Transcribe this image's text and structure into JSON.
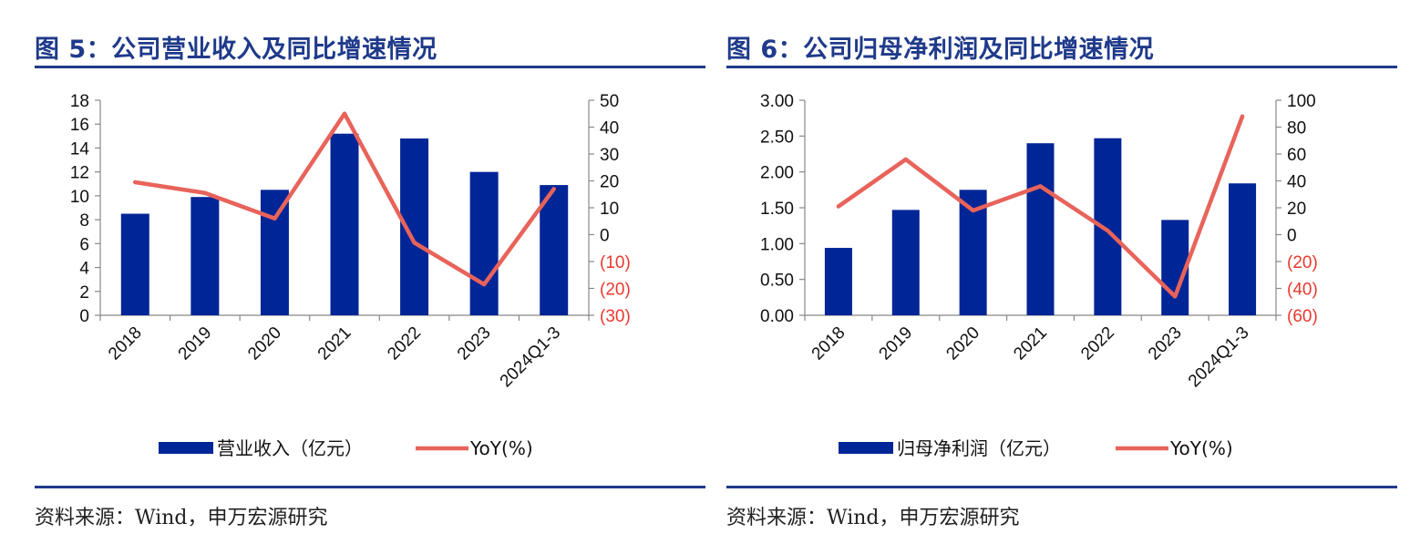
{
  "colors": {
    "bar": "#002596",
    "line": "#e8635a",
    "negative_tick": "#e8392f",
    "title": "#1f3a8a"
  },
  "charts": [
    {
      "title": "图 5：公司营业收入及同比增速情况",
      "source": "资料来源：Wind，申万宏源研究",
      "legend_bar": "营业收入（亿元）",
      "legend_line": "YoY(%)",
      "left_ticks": [
        "0",
        "2",
        "4",
        "6",
        "8",
        "10",
        "12",
        "14",
        "16",
        "18"
      ],
      "right_ticks": [
        "(30)",
        "(20)",
        "(10)",
        "0",
        "10",
        "20",
        "30",
        "40",
        "50"
      ]
    },
    {
      "title": "图 6：公司归母净利润及同比增速情况",
      "source": "资料来源：Wind，申万宏源研究",
      "legend_bar": "归母净利润（亿元）",
      "legend_line": "YoY(%)",
      "left_ticks": [
        "0.00",
        "0.50",
        "1.00",
        "1.50",
        "2.00",
        "2.50",
        "3.00"
      ],
      "right_ticks": [
        "(60)",
        "(40)",
        "(20)",
        "0",
        "20",
        "40",
        "60",
        "80",
        "100"
      ]
    }
  ],
  "chart_data": [
    {
      "type": "bar",
      "categories": [
        "2018",
        "2019",
        "2020",
        "2021",
        "2022",
        "2023",
        "2024Q1-3"
      ],
      "series": [
        {
          "name": "营业收入（亿元）",
          "type": "bar",
          "axis": "left",
          "values": [
            8.5,
            9.9,
            10.5,
            15.2,
            14.8,
            12.0,
            10.9
          ]
        },
        {
          "name": "YoY(%)",
          "type": "line",
          "axis": "right",
          "values": [
            19.5,
            15.5,
            6,
            45,
            -3,
            -18.5,
            17
          ]
        }
      ],
      "ylim_left": [
        0,
        18
      ],
      "ylim_right": [
        -30,
        50
      ]
    },
    {
      "type": "bar",
      "categories": [
        "2018",
        "2019",
        "2020",
        "2021",
        "2022",
        "2023",
        "2024Q1-3"
      ],
      "series": [
        {
          "name": "归母净利润（亿元）",
          "type": "bar",
          "axis": "left",
          "values": [
            0.94,
            1.47,
            1.75,
            2.4,
            2.47,
            1.33,
            1.84
          ]
        },
        {
          "name": "YoY(%)",
          "type": "line",
          "axis": "right",
          "values": [
            21,
            56,
            18,
            36,
            3,
            -46,
            88
          ]
        }
      ],
      "ylim_left": [
        0,
        3
      ],
      "ylim_right": [
        -60,
        100
      ]
    }
  ]
}
